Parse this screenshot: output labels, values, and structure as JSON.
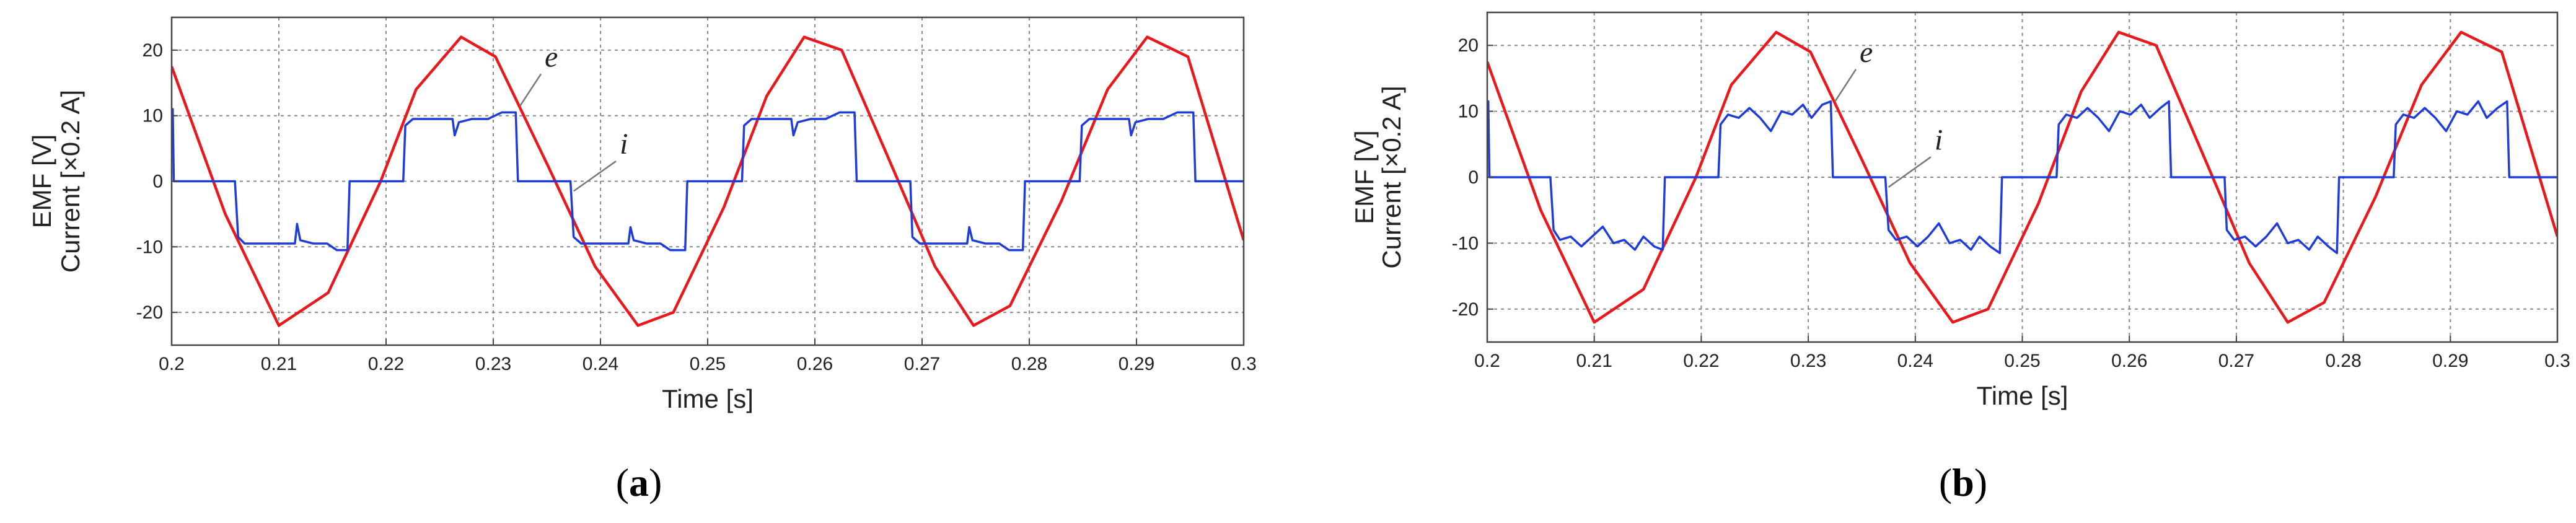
{
  "figure": {
    "panel_a_caption": {
      "open": "(",
      "letter": "a",
      "close": ")"
    },
    "panel_b_caption": {
      "open": "(",
      "letter": "b",
      "close": ")"
    }
  },
  "chart_data": [
    {
      "panel": "a",
      "type": "line",
      "xlabel": "Time [s]",
      "ylabel_line1": "Current [×0.2 A]",
      "ylabel_line2": "EMF [V]",
      "xlim": [
        0.2,
        0.3
      ],
      "ylim": [
        -25,
        25
      ],
      "xticks": [
        0.2,
        0.21,
        0.22,
        0.23,
        0.24,
        0.25,
        0.26,
        0.27,
        0.28,
        0.29,
        0.3
      ],
      "xtick_labels": [
        "0.2",
        "0.21",
        "0.22",
        "0.23",
        "0.24",
        "0.25",
        "0.26",
        "0.27",
        "0.28",
        "0.29",
        "0.3"
      ],
      "yticks": [
        -20,
        -10,
        0,
        10,
        20
      ],
      "ytick_labels": [
        "-20",
        "-10",
        "0",
        "10",
        "20"
      ],
      "grid": true,
      "series": [
        {
          "name": "e",
          "color": "#e8191d",
          "x": [
            0.2,
            0.205,
            0.21,
            0.2146,
            0.2195,
            0.2228,
            0.227,
            0.2302,
            0.2352,
            0.2395,
            0.2435,
            0.2468,
            0.2515,
            0.2555,
            0.259,
            0.2625,
            0.267,
            0.2712,
            0.2748,
            0.2782,
            0.283,
            0.2873,
            0.291,
            0.2948,
            0.3
          ],
          "y": [
            17.5,
            -5,
            -22,
            -17,
            0,
            14,
            22,
            19,
            2,
            -13,
            -22,
            -20,
            -4,
            13,
            22,
            20,
            3,
            -13,
            -22,
            -19,
            -3,
            14,
            22,
            19,
            -9
          ]
        },
        {
          "name": "i",
          "color": "#1f3bd9",
          "x": [
            0.2,
            0.2001,
            0.2002,
            0.2004,
            0.2059,
            0.2062,
            0.2068,
            0.2085,
            0.2115,
            0.2117,
            0.212,
            0.2132,
            0.2145,
            0.2154,
            0.2164,
            0.2166,
            0.2216,
            0.2218,
            0.2225,
            0.2242,
            0.2262,
            0.2264,
            0.2268,
            0.228,
            0.2295,
            0.2308,
            0.2321,
            0.2323,
            0.2372,
            0.2375,
            0.2382,
            0.2398,
            0.2426,
            0.2428,
            0.2431,
            0.2443,
            0.2456,
            0.2465,
            0.2479,
            0.2481,
            0.2532,
            0.2534,
            0.2541,
            0.2558,
            0.2578,
            0.258,
            0.2584,
            0.2596,
            0.261,
            0.2623,
            0.2637,
            0.2639,
            0.2689,
            0.2691,
            0.2698,
            0.2715,
            0.2742,
            0.2744,
            0.2747,
            0.2759,
            0.2772,
            0.2781,
            0.2794,
            0.2796,
            0.2847,
            0.2849,
            0.2856,
            0.2873,
            0.2893,
            0.2895,
            0.2899,
            0.2911,
            0.2925,
            0.2938,
            0.2953,
            0.2955,
            0.3
          ],
          "y": [
            11,
            11,
            0,
            0,
            0,
            -8.5,
            -9.5,
            -9.5,
            -9.5,
            -6.5,
            -9,
            -9.5,
            -9.5,
            -10.5,
            -10.5,
            0,
            0,
            8.5,
            9.5,
            9.5,
            9.5,
            7,
            9,
            9.5,
            9.5,
            10.5,
            10.5,
            0,
            0,
            -8.5,
            -9.5,
            -9.5,
            -9.5,
            -7,
            -9,
            -9.5,
            -9.5,
            -10.5,
            -10.5,
            0,
            0,
            8.5,
            9.5,
            9.5,
            9.5,
            7,
            9,
            9.5,
            9.5,
            10.5,
            10.5,
            0,
            0,
            -8.5,
            -9.5,
            -9.5,
            -9.5,
            -7,
            -9,
            -9.5,
            -9.5,
            -10.5,
            -10.5,
            0,
            0,
            8.5,
            9.5,
            9.5,
            9.5,
            7,
            9,
            9.5,
            9.5,
            10.5,
            10.5,
            0,
            0
          ]
        }
      ],
      "annotations": [
        {
          "text": "e",
          "x": 0.2348,
          "y": 17.5,
          "target_x": 0.2325,
          "target_y": 11.5
        },
        {
          "text": "i",
          "x": 0.2418,
          "y": 4.2,
          "target_x": 0.2375,
          "target_y": -1.5
        }
      ]
    },
    {
      "panel": "b",
      "type": "line",
      "xlabel": "Time [s]",
      "ylabel_line1": "Current [×0.2 A]",
      "ylabel_line2": "EMF [V]",
      "xlim": [
        0.2,
        0.3
      ],
      "ylim": [
        -25,
        25
      ],
      "xticks": [
        0.2,
        0.21,
        0.22,
        0.23,
        0.24,
        0.25,
        0.26,
        0.27,
        0.28,
        0.29,
        0.3
      ],
      "xtick_labels": [
        "0.2",
        "0.21",
        "0.22",
        "0.23",
        "0.24",
        "0.25",
        "0.26",
        "0.27",
        "0.28",
        "0.29",
        "0.3"
      ],
      "yticks": [
        -20,
        -10,
        0,
        10,
        20
      ],
      "ytick_labels": [
        "-20",
        "-10",
        "0",
        "10",
        "20"
      ],
      "grid": true,
      "series": [
        {
          "name": "e",
          "color": "#e8191d",
          "x": [
            0.2,
            0.205,
            0.21,
            0.2146,
            0.2195,
            0.2228,
            0.227,
            0.2302,
            0.2352,
            0.2395,
            0.2435,
            0.2468,
            0.2515,
            0.2555,
            0.259,
            0.2625,
            0.267,
            0.2712,
            0.2748,
            0.2782,
            0.283,
            0.2873,
            0.291,
            0.2948,
            0.3
          ],
          "y": [
            17.5,
            -5,
            -22,
            -17,
            0,
            14,
            22,
            19,
            2,
            -13,
            -22,
            -20,
            -4,
            13,
            22,
            20,
            3,
            -13,
            -22,
            -19,
            -3,
            14,
            22,
            19,
            -9
          ]
        },
        {
          "name": "i",
          "color": "#1f3bd9",
          "x": [
            0.2,
            0.2001,
            0.2002,
            0.2004,
            0.2059,
            0.2062,
            0.2068,
            0.2078,
            0.2088,
            0.2098,
            0.2108,
            0.2118,
            0.2128,
            0.2138,
            0.2146,
            0.2156,
            0.2164,
            0.2166,
            0.2216,
            0.2218,
            0.2225,
            0.2235,
            0.2245,
            0.2255,
            0.2265,
            0.2275,
            0.2285,
            0.2295,
            0.2303,
            0.2313,
            0.2321,
            0.2323,
            0.2372,
            0.2375,
            0.2382,
            0.2392,
            0.2402,
            0.2412,
            0.2422,
            0.2432,
            0.2442,
            0.2452,
            0.246,
            0.247,
            0.2479,
            0.2481,
            0.2532,
            0.2534,
            0.2541,
            0.2551,
            0.2561,
            0.2571,
            0.2581,
            0.2591,
            0.2601,
            0.2611,
            0.2619,
            0.2629,
            0.2637,
            0.2639,
            0.2689,
            0.2691,
            0.2698,
            0.2708,
            0.2718,
            0.2728,
            0.2738,
            0.2748,
            0.2758,
            0.2768,
            0.2776,
            0.2786,
            0.2794,
            0.2796,
            0.2847,
            0.2849,
            0.2856,
            0.2866,
            0.2876,
            0.2886,
            0.2896,
            0.2906,
            0.2916,
            0.2926,
            0.2934,
            0.2944,
            0.2953,
            0.2955,
            0.3
          ],
          "y": [
            11.5,
            11.5,
            0,
            0,
            0,
            -8,
            -9.5,
            -9,
            -10.5,
            -9,
            -7.5,
            -10,
            -9.5,
            -11,
            -9,
            -10.5,
            -11,
            0,
            0,
            8,
            9.5,
            9,
            10.5,
            9,
            7,
            10,
            9.5,
            11,
            9,
            11,
            11.5,
            0,
            0,
            -8,
            -9.5,
            -9,
            -10.5,
            -9,
            -7,
            -10,
            -9.5,
            -11,
            -9,
            -10.5,
            -11.5,
            0,
            0,
            8,
            9.5,
            9,
            10.5,
            9,
            7,
            10,
            9.5,
            11,
            9,
            10.5,
            11.5,
            0,
            0,
            -8,
            -9.5,
            -9,
            -10.5,
            -9,
            -7,
            -10,
            -9.5,
            -11,
            -9,
            -10.5,
            -11.5,
            0,
            0,
            8,
            9.5,
            9,
            10.5,
            9,
            7,
            10,
            9.5,
            11.5,
            9,
            10.5,
            11.5,
            0,
            0
          ]
        }
      ],
      "annotations": [
        {
          "text": "e",
          "x": 0.2348,
          "y": 17.5,
          "target_x": 0.2325,
          "target_y": 11.5
        },
        {
          "text": "i",
          "x": 0.2418,
          "y": 4.2,
          "target_x": 0.2375,
          "target_y": -1.5
        }
      ]
    }
  ]
}
